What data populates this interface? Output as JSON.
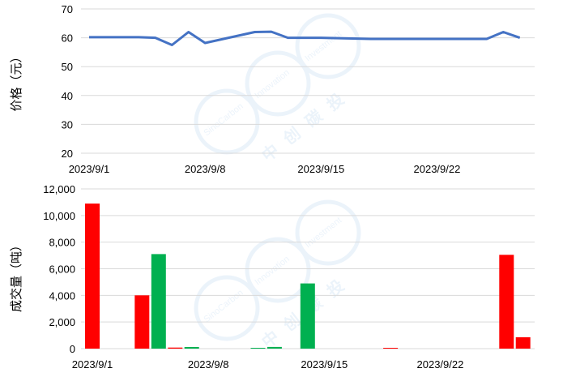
{
  "chart_data": [
    {
      "type": "line",
      "ylabel": "价格（元）",
      "ylim": [
        20,
        70
      ],
      "yticks": [
        20,
        30,
        40,
        50,
        60,
        70
      ],
      "x_tick_labels": [
        "2023/9/1",
        "2023/9/8",
        "2023/9/15",
        "2023/9/22"
      ],
      "grid": true,
      "color": "#4472C4",
      "series": [
        {
          "x": [
            "2023/9/1",
            "2023/9/4",
            "2023/9/5",
            "2023/9/6",
            "2023/9/7",
            "2023/9/8",
            "2023/9/11",
            "2023/9/12",
            "2023/9/13",
            "2023/9/14",
            "2023/9/15",
            "2023/9/18",
            "2023/9/19",
            "2023/9/20",
            "2023/9/21",
            "2023/9/22",
            "2023/9/25",
            "2023/9/26",
            "2023/9/27"
          ],
          "values": [
            60.2,
            60.2,
            60.0,
            57.5,
            62.0,
            58.2,
            62.0,
            62.1,
            60.0,
            60.0,
            60.0,
            59.6,
            59.6,
            59.6,
            59.6,
            59.6,
            59.6,
            62.0,
            60.0
          ]
        }
      ]
    },
    {
      "type": "bar",
      "ylabel": "成交量（吨）",
      "ylim": [
        0,
        12000
      ],
      "yticks": [
        "0",
        "2,000",
        "4,000",
        "6,000",
        "8,000",
        "10,000",
        "12,000"
      ],
      "x_tick_labels": [
        "2023/9/1",
        "2023/9/8",
        "2023/9/15",
        "2023/9/22"
      ],
      "grid": true,
      "colors": {
        "up": "#FF0000",
        "down": "#00B050"
      },
      "bars": [
        {
          "x": "2023/9/1",
          "value": 10900,
          "color": "up"
        },
        {
          "x": "2023/9/4",
          "value": 4000,
          "color": "up"
        },
        {
          "x": "2023/9/5",
          "value": 7100,
          "color": "down"
        },
        {
          "x": "2023/9/6",
          "value": 80,
          "color": "up"
        },
        {
          "x": "2023/9/7",
          "value": 120,
          "color": "down"
        },
        {
          "x": "2023/9/11",
          "value": 60,
          "color": "down"
        },
        {
          "x": "2023/9/12",
          "value": 130,
          "color": "down"
        },
        {
          "x": "2023/9/14",
          "value": 4900,
          "color": "down"
        },
        {
          "x": "2023/9/19",
          "value": 60,
          "color": "up"
        },
        {
          "x": "2023/9/26",
          "value": 7050,
          "color": "up"
        },
        {
          "x": "2023/9/27",
          "value": 850,
          "color": "up"
        }
      ]
    }
  ],
  "watermark": {
    "brand_cn": "中创碳投",
    "brand_en_1": "SinoCarbon",
    "brand_en_2": "Innovation",
    "brand_en_3": "Investment"
  }
}
